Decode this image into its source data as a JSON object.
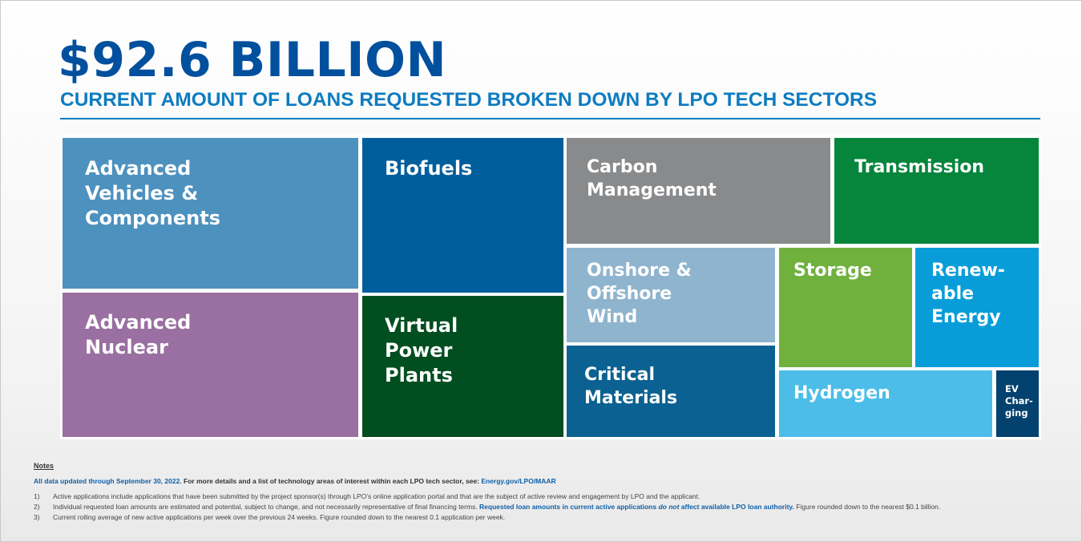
{
  "header": {
    "title": "$92.6 BILLION",
    "subtitle": "CURRENT AMOUNT OF LOANS REQUESTED BROKEN DOWN BY LPO TECH SECTORS"
  },
  "chart_data": {
    "type": "treemap",
    "title": "$92.6 BILLION",
    "subtitle": "CURRENT AMOUNT OF LOANS REQUESTED BROKEN DOWN BY LPO TECH SECTORS",
    "total_billion": 92.6,
    "sectors": [
      {
        "id": "adv-vehicles",
        "label": "Advanced\nVehicles &\nComponents",
        "color": "#4d91bf",
        "share": 0.149
      },
      {
        "id": "adv-nuclear",
        "label": "Advanced\nNuclear",
        "color": "#9a6fa1",
        "share": 0.148
      },
      {
        "id": "biofuels",
        "label": "Biofuels",
        "color": "#005e9c",
        "share": 0.107
      },
      {
        "id": "vpp",
        "label": "Virtual\nPower\nPlants",
        "color": "#014e20",
        "share": 0.099
      },
      {
        "id": "carbon",
        "label": "Carbon\nManagement",
        "color": "#898a8c",
        "share": 0.093
      },
      {
        "id": "transmission",
        "label": "Transmission",
        "color": "#06853c",
        "share": 0.071
      },
      {
        "id": "wind",
        "label": "Onshore &\nOffshore\nWind",
        "color": "#8fb4ce",
        "share": 0.068
      },
      {
        "id": "critical",
        "label": "Critical\nMaterials",
        "color": "#0a6192",
        "share": 0.066
      },
      {
        "id": "storage",
        "label": "Storage",
        "color": "#70b13e",
        "share": 0.054
      },
      {
        "id": "renewable",
        "label": "Renew-\nable\nEnergy",
        "color": "#089dd8",
        "share": 0.051
      },
      {
        "id": "hydrogen",
        "label": "Hydrogen",
        "color": "#4cbde9",
        "share": 0.046
      },
      {
        "id": "ev-charging",
        "label": "EV\nChar-\nging",
        "color": "#03416f",
        "share": 0.011
      }
    ]
  },
  "notes": {
    "heading": "Notes",
    "updated_bold": "All data updated through September 30, 2022.",
    "updated_rest": " For more details and a list of technology areas of interest within each LPO tech sector, see: ",
    "updated_link": "Energy.gov/LPO/MAAR",
    "items": [
      {
        "num": "1)",
        "text": "Active applications include applications that have been submitted by the project sponsor(s) through LPO’s online application portal and that are the subject of active review and engagement by LPO and the applicant."
      },
      {
        "num": "2)",
        "text_a": "Individual requested loan amounts are estimated and potential, subject to change, and not necessarily representative of final financing terms. ",
        "text_b": "Requested loan amounts in current active applications ",
        "text_c": "do not",
        "text_d": " affect available LPO loan authority.",
        "text_e": " Figure rounded down to the nearest $0.1 billion."
      },
      {
        "num": "3)",
        "text": "Current rolling average of new active applications per week over the previous 24 weeks. Figure rounded down to the nearest 0.1 application per week."
      }
    ]
  }
}
